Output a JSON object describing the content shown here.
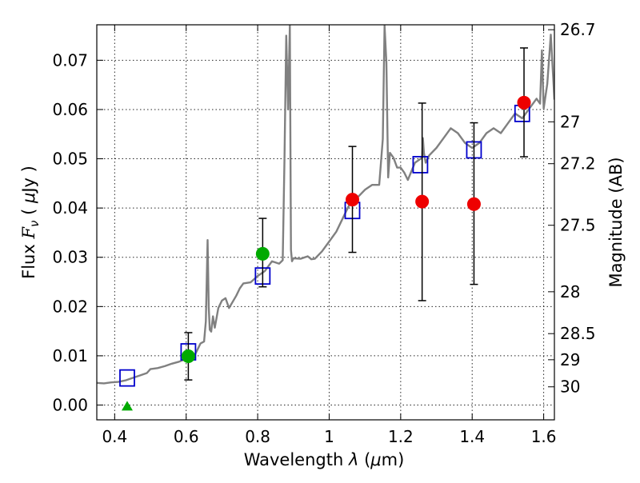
{
  "chart_data": {
    "type": "scatter",
    "xlabel_prefix": "Wavelength  ",
    "xlabel_lambda": "λ",
    "xlabel_suffix": " (",
    "xlabel_mu": "μ",
    "xlabel_unit": "m)",
    "ylabel_prefix": "Flux  ",
    "ylabel_F": "F",
    "ylabel_sub": "ν",
    "ylabel_mid": "  ( ",
    "ylabel_mu": "μ",
    "ylabel_unit": "Jy )",
    "y2label": "Magnitude (AB)",
    "xlim": [
      0.35,
      1.63
    ],
    "ylim": [
      -0.003,
      0.0772
    ],
    "grid": true,
    "x_ticks": [
      {
        "value": 0.4,
        "label": "0.4"
      },
      {
        "value": 0.6,
        "label": "0.6"
      },
      {
        "value": 0.8,
        "label": "0.8"
      },
      {
        "value": 1.0,
        "label": "1"
      },
      {
        "value": 1.2,
        "label": "1.2"
      },
      {
        "value": 1.4,
        "label": "1.4"
      },
      {
        "value": 1.6,
        "label": "1.6"
      }
    ],
    "y_ticks": [
      {
        "value": 0.0,
        "label": "0.00"
      },
      {
        "value": 0.01,
        "label": "0.01"
      },
      {
        "value": 0.02,
        "label": "0.02"
      },
      {
        "value": 0.03,
        "label": "0.03"
      },
      {
        "value": 0.04,
        "label": "0.04"
      },
      {
        "value": 0.05,
        "label": "0.05"
      },
      {
        "value": 0.06,
        "label": "0.06"
      },
      {
        "value": 0.07,
        "label": "0.07"
      }
    ],
    "y2_ticks": [
      {
        "flux": 0.0762,
        "label": "26.7"
      },
      {
        "flux": 0.0575,
        "label": "27"
      },
      {
        "flux": 0.049,
        "label": "27.2"
      },
      {
        "flux": 0.0365,
        "label": "27.5"
      },
      {
        "flux": 0.023,
        "label": "28"
      },
      {
        "flux": 0.0145,
        "label": "28.5"
      },
      {
        "flux": 0.0092,
        "label": "29"
      },
      {
        "flux": 0.0037,
        "label": "30"
      }
    ],
    "series": [
      {
        "kind": "spectrum",
        "color": "#808080",
        "x": [
          0.35,
          0.37,
          0.39,
          0.41,
          0.43,
          0.45,
          0.47,
          0.49,
          0.5,
          0.52,
          0.54,
          0.56,
          0.58,
          0.6,
          0.62,
          0.63,
          0.64,
          0.645,
          0.65,
          0.655,
          0.66,
          0.663,
          0.666,
          0.67,
          0.675,
          0.68,
          0.69,
          0.7,
          0.71,
          0.72,
          0.74,
          0.75,
          0.76,
          0.78,
          0.8,
          0.82,
          0.84,
          0.86,
          0.87,
          0.875,
          0.88,
          0.885,
          0.89,
          0.893,
          0.896,
          0.9,
          0.92,
          0.94,
          0.95,
          0.96,
          0.98,
          1.0,
          1.02,
          1.04,
          1.06,
          1.08,
          1.1,
          1.12,
          1.14,
          1.15,
          1.155,
          1.16,
          1.165,
          1.17,
          1.18,
          1.19,
          1.2,
          1.21,
          1.22,
          1.24,
          1.25,
          1.26,
          1.262,
          1.265,
          1.27,
          1.28,
          1.3,
          1.32,
          1.34,
          1.36,
          1.38,
          1.4,
          1.42,
          1.44,
          1.46,
          1.48,
          1.5,
          1.52,
          1.54,
          1.56,
          1.58,
          1.59,
          1.595,
          1.6,
          1.61,
          1.62,
          1.63
        ],
        "y": [
          0.0045,
          0.0044,
          0.0046,
          0.0047,
          0.005,
          0.0055,
          0.006,
          0.0065,
          0.0073,
          0.0075,
          0.0079,
          0.0084,
          0.0088,
          0.0094,
          0.0097,
          0.011,
          0.0125,
          0.0127,
          0.0129,
          0.017,
          0.0335,
          0.02,
          0.0153,
          0.0149,
          0.018,
          0.0157,
          0.0197,
          0.0212,
          0.0217,
          0.0197,
          0.0222,
          0.0237,
          0.0247,
          0.0249,
          0.0262,
          0.0272,
          0.0292,
          0.0287,
          0.0294,
          0.0499,
          0.075,
          0.06,
          0.077,
          0.0315,
          0.0292,
          0.0298,
          0.0297,
          0.0302,
          0.0296,
          0.0297,
          0.0312,
          0.0332,
          0.0352,
          0.0382,
          0.0412,
          0.0422,
          0.0437,
          0.0447,
          0.0447,
          0.054,
          0.077,
          0.0695,
          0.0462,
          0.0512,
          0.0502,
          0.0482,
          0.0482,
          0.0472,
          0.0457,
          0.0492,
          0.0497,
          0.0502,
          0.0542,
          0.0512,
          0.0492,
          0.0507,
          0.0522,
          0.0542,
          0.0562,
          0.0552,
          0.0532,
          0.0522,
          0.0532,
          0.0552,
          0.0562,
          0.0552,
          0.0572,
          0.0592,
          0.0582,
          0.0602,
          0.0622,
          0.0612,
          0.072,
          0.0602,
          0.0652,
          0.0752,
          0.062
        ]
      },
      {
        "kind": "open-square",
        "color": "#0000cc",
        "points": [
          {
            "x": 0.435,
            "y": 0.0055
          },
          {
            "x": 0.606,
            "y": 0.0108
          },
          {
            "x": 0.814,
            "y": 0.0262
          },
          {
            "x": 1.065,
            "y": 0.0395
          },
          {
            "x": 1.255,
            "y": 0.0488
          },
          {
            "x": 1.405,
            "y": 0.0518
          },
          {
            "x": 1.54,
            "y": 0.0592
          }
        ]
      },
      {
        "kind": "filled-circle",
        "color": "#00aa00",
        "points": [
          {
            "x": 0.606,
            "y": 0.0099,
            "yerr_low": 0.0048,
            "yerr_high": 0.0048
          },
          {
            "x": 0.814,
            "y": 0.0307,
            "yerr_low": 0.0067,
            "yerr_high": 0.0072
          }
        ]
      },
      {
        "kind": "filled-triangle",
        "color": "#00aa00",
        "points": [
          {
            "x": 0.435,
            "y": -0.0003
          }
        ]
      },
      {
        "kind": "filled-circle",
        "color": "#ee0000",
        "points": [
          {
            "x": 1.065,
            "y": 0.0417,
            "yerr_low": 0.0107,
            "yerr_high": 0.0108
          },
          {
            "x": 1.26,
            "y": 0.0413,
            "yerr_low": 0.0201,
            "yerr_high": 0.02
          },
          {
            "x": 1.405,
            "y": 0.0408,
            "yerr_low": 0.0163,
            "yerr_high": 0.0165
          },
          {
            "x": 1.545,
            "y": 0.0614,
            "yerr_low": 0.011,
            "yerr_high": 0.0111
          }
        ]
      }
    ]
  }
}
